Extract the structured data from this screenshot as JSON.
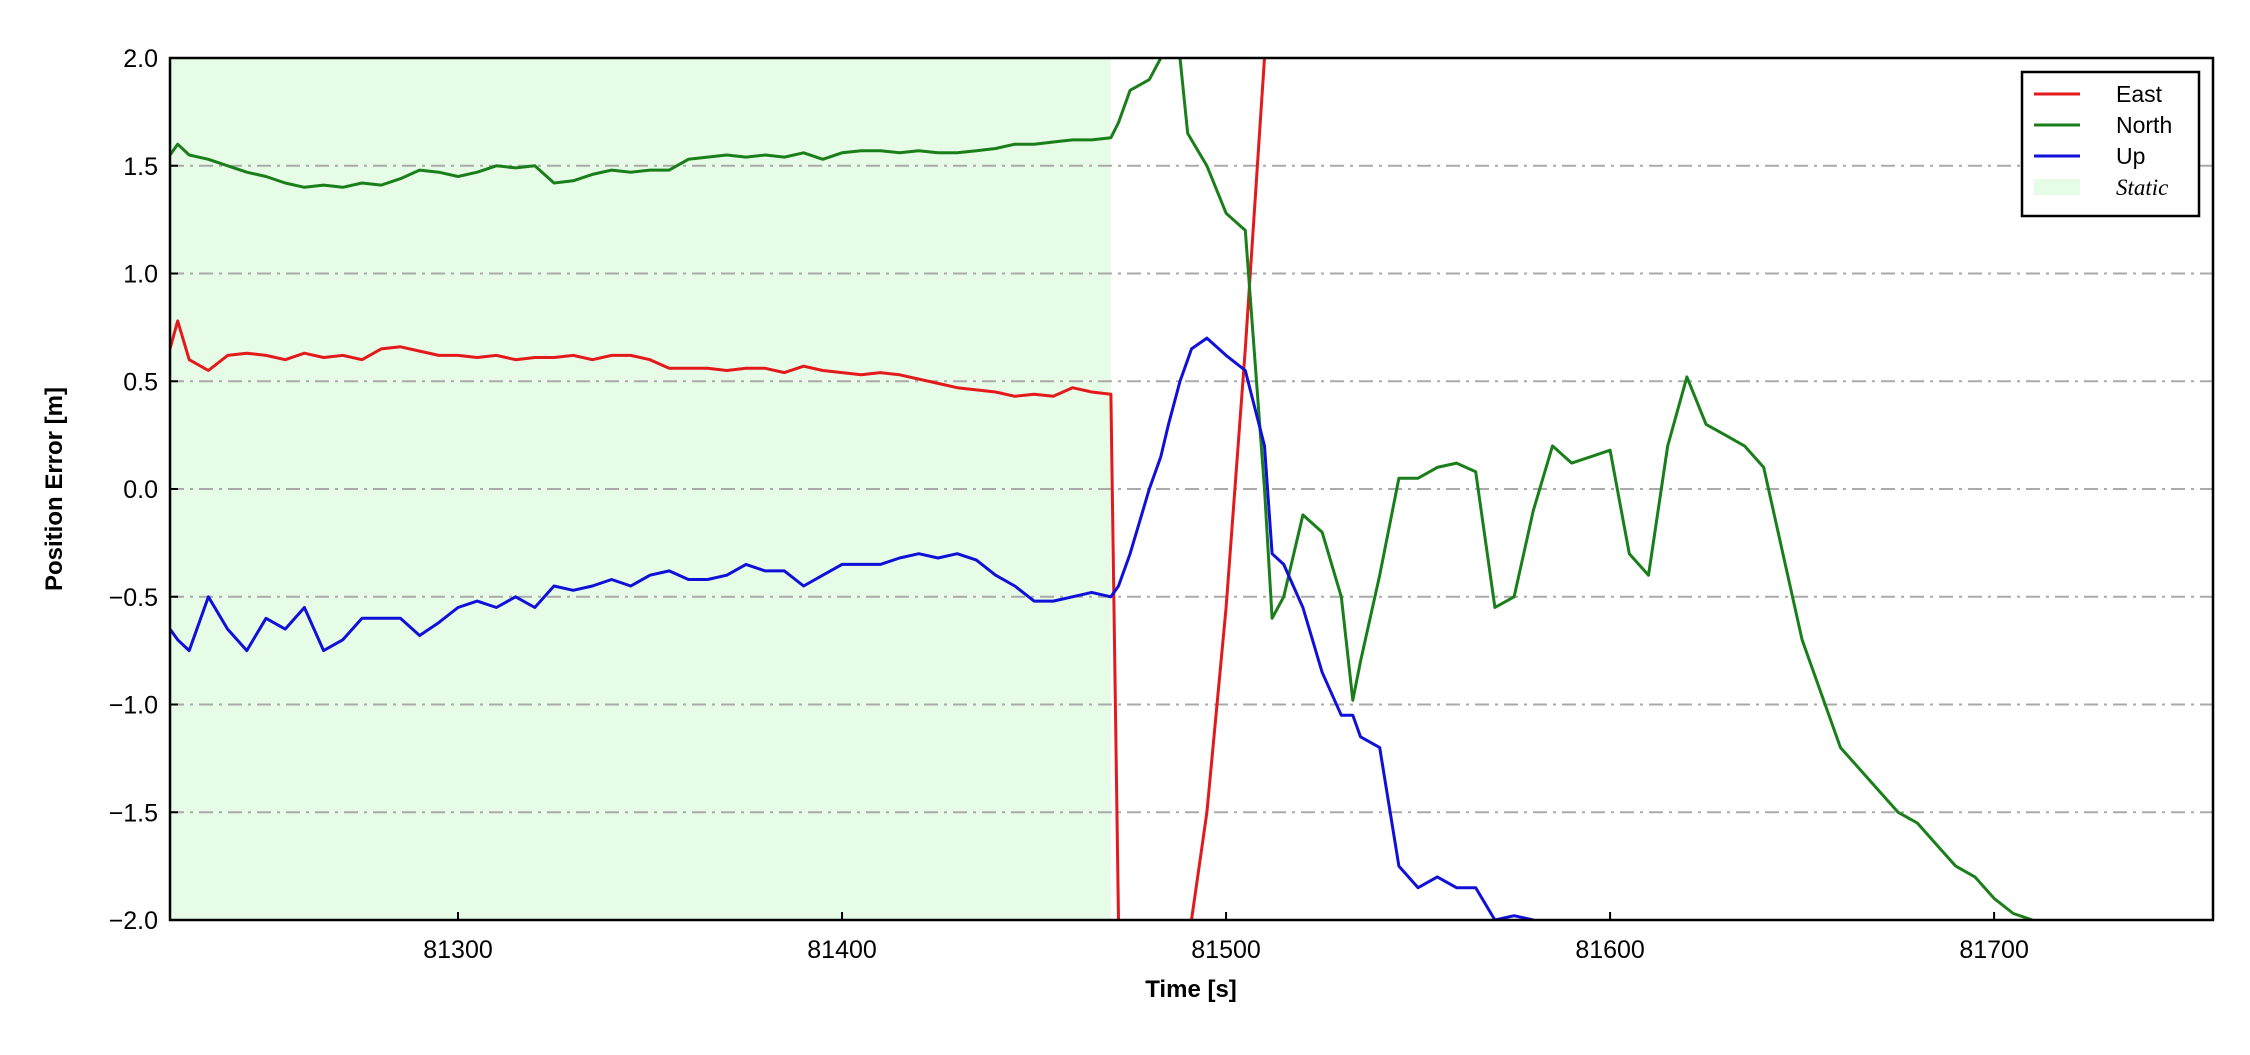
{
  "chart_data": {
    "type": "line",
    "xlabel": "Time [s]",
    "ylabel": "Position Error [m]",
    "xlim": [
      81225,
      81757
    ],
    "ylim": [
      -2,
      2
    ],
    "xticks": [
      81300,
      81400,
      81500,
      81600,
      81700
    ],
    "yticks": [
      {
        "value": -2,
        "label": "−2.0"
      },
      {
        "value": -1.5,
        "label": "−1.5"
      },
      {
        "value": -1,
        "label": "−1.0"
      },
      {
        "value": -0.5,
        "label": "−0.5"
      },
      {
        "value": 0,
        "label": "0.0"
      },
      {
        "value": 0.5,
        "label": "0.5"
      },
      {
        "value": 1,
        "label": "1.0"
      },
      {
        "value": 1.5,
        "label": "1.5"
      },
      {
        "value": 2,
        "label": "2.0"
      }
    ],
    "grid": "y",
    "legend": "upper right",
    "static_span": {
      "label": "Static",
      "color": "#e6fce6",
      "range": [
        81225,
        81470
      ]
    },
    "x": [
      81225,
      81227,
      81230,
      81235,
      81240,
      81245,
      81250,
      81255,
      81260,
      81265,
      81270,
      81275,
      81280,
      81285,
      81290,
      81295,
      81300,
      81305,
      81310,
      81315,
      81320,
      81325,
      81330,
      81335,
      81340,
      81345,
      81350,
      81355,
      81360,
      81365,
      81370,
      81375,
      81380,
      81385,
      81390,
      81395,
      81400,
      81405,
      81410,
      81415,
      81420,
      81425,
      81430,
      81435,
      81440,
      81445,
      81450,
      81455,
      81460,
      81465,
      81470,
      81472,
      81475,
      81480,
      81483,
      81485,
      81488,
      81490,
      81491,
      81495,
      81500,
      81505,
      81510,
      81512,
      81515,
      81520,
      81525,
      81530,
      81533,
      81535,
      81540,
      81545,
      81550,
      81555,
      81560,
      81565,
      81570,
      81575,
      81580,
      81585,
      81590,
      81595,
      81600,
      81605,
      81610,
      81615,
      81620,
      81625,
      81630,
      81635,
      81640,
      81645,
      81650,
      81655,
      81660,
      81665,
      81670,
      81675,
      81680,
      81685,
      81690,
      81695,
      81700,
      81705,
      81710
    ],
    "series": [
      {
        "name": "East",
        "color": "#e31a1c",
        "values": [
          0.65,
          0.78,
          0.6,
          0.55,
          0.62,
          0.63,
          0.62,
          0.6,
          0.63,
          0.61,
          0.62,
          0.6,
          0.65,
          0.66,
          0.64,
          0.62,
          0.62,
          0.61,
          0.62,
          0.6,
          0.61,
          0.61,
          0.62,
          0.6,
          0.62,
          0.62,
          0.6,
          0.56,
          0.56,
          0.56,
          0.55,
          0.56,
          0.56,
          0.54,
          0.57,
          0.55,
          0.54,
          0.53,
          0.54,
          0.53,
          0.51,
          0.49,
          0.47,
          0.46,
          0.45,
          0.43,
          0.44,
          0.43,
          0.47,
          0.45,
          0.44,
          -2.0,
          null,
          null,
          null,
          null,
          null,
          null,
          -2.0,
          -1.5,
          -0.55,
          0.65,
          2.0,
          null,
          null,
          null,
          null,
          null,
          null,
          null,
          null,
          null,
          null,
          null,
          null,
          null,
          null,
          null,
          null,
          null,
          null,
          null,
          null,
          null,
          null,
          null,
          null,
          null,
          null,
          null,
          null,
          null,
          null,
          null,
          null,
          null,
          null,
          null,
          null,
          null,
          null,
          null,
          null,
          null,
          null
        ]
      },
      {
        "name": "North",
        "color": "#1a7f1a",
        "values": [
          1.55,
          1.6,
          1.55,
          1.53,
          1.5,
          1.47,
          1.45,
          1.42,
          1.4,
          1.41,
          1.4,
          1.42,
          1.41,
          1.44,
          1.48,
          1.47,
          1.45,
          1.47,
          1.5,
          1.49,
          1.5,
          1.42,
          1.43,
          1.46,
          1.48,
          1.47,
          1.48,
          1.48,
          1.53,
          1.54,
          1.55,
          1.54,
          1.55,
          1.54,
          1.56,
          1.53,
          1.56,
          1.57,
          1.57,
          1.56,
          1.57,
          1.56,
          1.56,
          1.57,
          1.58,
          1.6,
          1.6,
          1.61,
          1.62,
          1.62,
          1.63,
          1.7,
          1.85,
          1.9,
          2.0,
          null,
          2.0,
          1.65,
          1.62,
          1.5,
          1.28,
          1.2,
          0.0,
          -0.6,
          -0.5,
          -0.12,
          -0.2,
          -0.5,
          -0.98,
          -0.8,
          -0.4,
          0.05,
          0.05,
          0.1,
          0.12,
          0.08,
          -0.55,
          -0.5,
          -0.1,
          0.2,
          0.12,
          0.15,
          0.18,
          -0.3,
          -0.4,
          0.2,
          0.52,
          0.3,
          0.25,
          0.2,
          0.1,
          -0.3,
          -0.7,
          -0.95,
          -1.2,
          -1.3,
          -1.4,
          -1.5,
          -1.55,
          -1.65,
          -1.75,
          -1.8,
          -1.9,
          -1.97,
          -2.0
        ]
      },
      {
        "name": "Up",
        "color": "#1010d8",
        "values": [
          -0.65,
          -0.7,
          -0.75,
          -0.5,
          -0.65,
          -0.75,
          -0.6,
          -0.65,
          -0.55,
          -0.75,
          -0.7,
          -0.6,
          -0.6,
          -0.6,
          -0.68,
          -0.62,
          -0.55,
          -0.52,
          -0.55,
          -0.5,
          -0.55,
          -0.45,
          -0.47,
          -0.45,
          -0.42,
          -0.45,
          -0.4,
          -0.38,
          -0.42,
          -0.42,
          -0.4,
          -0.35,
          -0.38,
          -0.38,
          -0.45,
          -0.4,
          -0.35,
          -0.35,
          -0.35,
          -0.32,
          -0.3,
          -0.32,
          -0.3,
          -0.33,
          -0.4,
          -0.45,
          -0.52,
          -0.52,
          -0.5,
          -0.48,
          -0.5,
          -0.45,
          -0.3,
          0.0,
          0.15,
          0.3,
          0.5,
          0.6,
          0.65,
          0.7,
          0.62,
          0.55,
          0.2,
          -0.3,
          -0.35,
          -0.55,
          -0.85,
          -1.05,
          -1.05,
          -1.15,
          -1.2,
          -1.75,
          -1.85,
          -1.8,
          -1.85,
          -1.85,
          -2.0,
          -1.98,
          -2.0,
          null,
          null,
          null,
          null,
          null,
          null,
          null,
          null,
          null,
          null,
          null,
          null,
          null,
          null,
          null,
          null,
          null,
          null,
          null,
          null,
          null,
          null,
          null,
          null,
          null,
          null
        ]
      }
    ]
  }
}
